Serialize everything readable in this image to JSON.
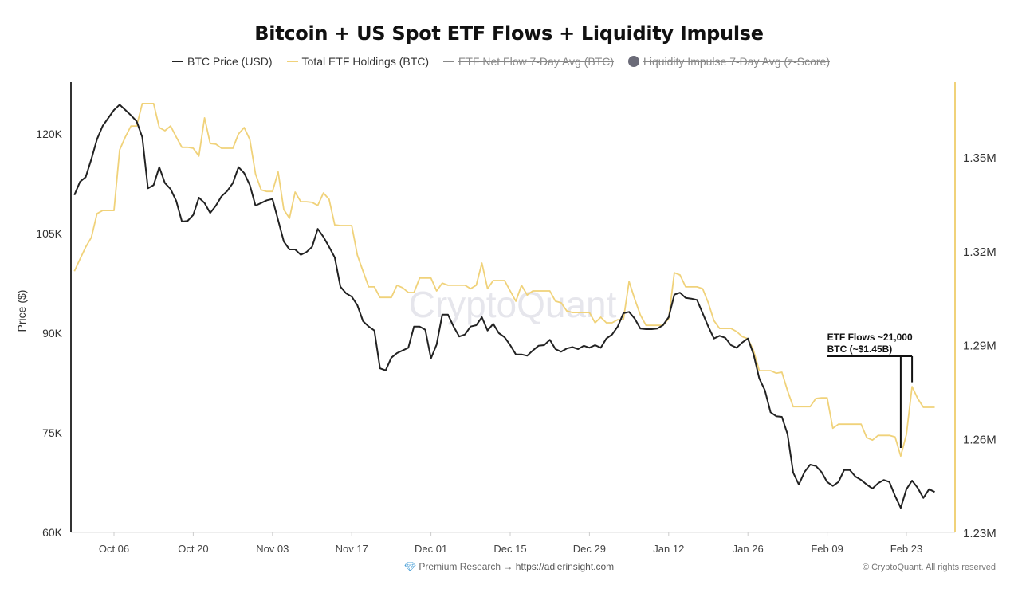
{
  "chart_data": {
    "type": "line",
    "title": "Bitcoin + US Spot ETF Flows + Liquidity Impulse",
    "ylabel": "Price ($)",
    "ylabel_right": "",
    "xlabel": "",
    "ylim": [
      60000,
      127000
    ],
    "ylim_right": [
      1230000,
      1372000
    ],
    "yticks": [
      {
        "v": 60000,
        "label": "60K"
      },
      {
        "v": 75000,
        "label": "75K"
      },
      {
        "v": 90000,
        "label": "90K"
      },
      {
        "v": 105000,
        "label": "105K"
      },
      {
        "v": 120000,
        "label": "120K"
      }
    ],
    "yticks_right": [
      {
        "v": 1230000,
        "label": "1.23M"
      },
      {
        "v": 1260000,
        "label": "1.26M"
      },
      {
        "v": 1290000,
        "label": "1.29M"
      },
      {
        "v": 1320000,
        "label": "1.32M"
      },
      {
        "v": 1350000,
        "label": "1.35M"
      }
    ],
    "xticks": [
      "Oct 06",
      "Oct 20",
      "Nov 03",
      "Nov 17",
      "Dec 01",
      "Dec 15",
      "Dec 29",
      "Jan 12",
      "Jan 26",
      "Feb 09",
      "Feb 23"
    ],
    "grid": false,
    "legend_position": "top",
    "legend": [
      {
        "label": "BTC Price (USD)",
        "color": "#222222",
        "marker": "line",
        "hidden": false
      },
      {
        "label": "Total ETF Holdings (BTC)",
        "color": "#f0d27a",
        "marker": "line",
        "hidden": false
      },
      {
        "label": "ETF Net Flow 7-Day Avg (BTC)",
        "color": "#888888",
        "marker": "line",
        "hidden": true
      },
      {
        "label": "Liquidity Impulse 7-Day Avg (z-Score)",
        "color": "#6b6b78",
        "marker": "dot",
        "hidden": true
      }
    ],
    "x": [
      "Sep 29",
      "Sep 30",
      "Oct 01",
      "Oct 02",
      "Oct 03",
      "Oct 04",
      "Oct 05",
      "Oct 06",
      "Oct 07",
      "Oct 08",
      "Oct 09",
      "Oct 10",
      "Oct 11",
      "Oct 12",
      "Oct 13",
      "Oct 14",
      "Oct 15",
      "Oct 16",
      "Oct 17",
      "Oct 18",
      "Oct 19",
      "Oct 20",
      "Oct 21",
      "Oct 22",
      "Oct 23",
      "Oct 24",
      "Oct 25",
      "Oct 26",
      "Oct 27",
      "Oct 28",
      "Oct 29",
      "Oct 30",
      "Oct 31",
      "Nov 01",
      "Nov 02",
      "Nov 03",
      "Nov 04",
      "Nov 05",
      "Nov 06",
      "Nov 07",
      "Nov 08",
      "Nov 09",
      "Nov 10",
      "Nov 11",
      "Nov 12",
      "Nov 13",
      "Nov 14",
      "Nov 15",
      "Nov 16",
      "Nov 17",
      "Nov 18",
      "Nov 19",
      "Nov 20",
      "Nov 21",
      "Nov 22",
      "Nov 23",
      "Nov 24",
      "Nov 25",
      "Nov 26",
      "Nov 27",
      "Nov 28",
      "Nov 29",
      "Nov 30",
      "Dec 01",
      "Dec 02",
      "Dec 03",
      "Dec 04",
      "Dec 05",
      "Dec 06",
      "Dec 07",
      "Dec 08",
      "Dec 09",
      "Dec 10",
      "Dec 11",
      "Dec 12",
      "Dec 13",
      "Dec 14",
      "Dec 15",
      "Dec 16",
      "Dec 17",
      "Dec 18",
      "Dec 19",
      "Dec 20",
      "Dec 21",
      "Dec 22",
      "Dec 23",
      "Dec 24",
      "Dec 25",
      "Dec 26",
      "Dec 27",
      "Dec 28",
      "Dec 29",
      "Dec 30",
      "Dec 31",
      "Jan 01",
      "Jan 02",
      "Jan 03",
      "Jan 04",
      "Jan 05",
      "Jan 06",
      "Jan 07",
      "Jan 08",
      "Jan 09",
      "Jan 10",
      "Jan 11",
      "Jan 12",
      "Jan 13",
      "Jan 14",
      "Jan 15",
      "Jan 16",
      "Jan 17",
      "Jan 18",
      "Jan 19",
      "Jan 20",
      "Jan 21",
      "Jan 22",
      "Jan 23",
      "Jan 24",
      "Jan 25",
      "Jan 26",
      "Jan 27",
      "Jan 28",
      "Jan 29",
      "Jan 30",
      "Jan 31",
      "Feb 01",
      "Feb 02",
      "Feb 03",
      "Feb 04",
      "Feb 05",
      "Feb 06",
      "Feb 07",
      "Feb 08",
      "Feb 09",
      "Feb 10",
      "Feb 11",
      "Feb 12",
      "Feb 13",
      "Feb 14",
      "Feb 15",
      "Feb 16",
      "Feb 17",
      "Feb 18",
      "Feb 19",
      "Feb 20",
      "Feb 21",
      "Feb 22",
      "Feb 23",
      "Feb 24",
      "Feb 25",
      "Feb 26",
      "Feb 27",
      "Feb 28"
    ],
    "series": [
      {
        "name": "BTC Price (USD)",
        "axis": "left",
        "color": "#222222",
        "values": [
          110800,
          112800,
          113500,
          116200,
          119200,
          121200,
          122400,
          123600,
          124400,
          123600,
          122800,
          121900,
          119500,
          111800,
          112300,
          115000,
          112600,
          111700,
          109900,
          106800,
          106900,
          107800,
          110400,
          109600,
          108100,
          109200,
          110600,
          111400,
          112600,
          115000,
          114100,
          112300,
          109200,
          109600,
          110000,
          110200,
          107000,
          103800,
          102600,
          102600,
          101800,
          102200,
          103000,
          105700,
          104500,
          103000,
          101400,
          97000,
          96000,
          95500,
          94200,
          91800,
          91000,
          90400,
          84700,
          84400,
          86300,
          87000,
          87400,
          87800,
          91000,
          91000,
          90500,
          86200,
          88300,
          92800,
          92800,
          91000,
          89500,
          89800,
          91000,
          91200,
          92400,
          90400,
          91400,
          90000,
          89400,
          88200,
          86800,
          86800,
          86600,
          87400,
          88100,
          88200,
          89000,
          87600,
          87200,
          87700,
          87900,
          87600,
          88100,
          87800,
          88200,
          87800,
          89200,
          89800,
          91000,
          93000,
          93200,
          92200,
          90700,
          90600,
          90600,
          90700,
          91200,
          92400,
          95800,
          96100,
          95300,
          95200,
          95000,
          93000,
          91000,
          89200,
          89600,
          89300,
          88200,
          87800,
          88600,
          89200,
          86800,
          83200,
          81400,
          78100,
          77500,
          77400,
          74800,
          69000,
          67200,
          69100,
          70200,
          70000,
          69100,
          67600,
          67000,
          67600,
          69400,
          69400,
          68400,
          67900,
          67200,
          66600,
          67400,
          67900,
          67600,
          65500,
          63700,
          66500,
          67800,
          66700,
          65200,
          66500,
          66100
        ]
      },
      {
        "name": "Total ETF Holdings (BTC)",
        "axis": "right",
        "color": "#f0d27a",
        "values": [
          1313500,
          1317400,
          1321200,
          1324300,
          1331900,
          1332900,
          1332900,
          1332900,
          1352300,
          1356400,
          1359900,
          1359900,
          1367100,
          1367100,
          1367100,
          1359400,
          1358400,
          1359900,
          1356400,
          1353100,
          1353100,
          1352800,
          1350300,
          1362500,
          1354300,
          1354100,
          1352800,
          1352800,
          1352800,
          1357400,
          1359400,
          1355600,
          1344600,
          1339500,
          1339000,
          1339000,
          1345200,
          1333200,
          1330400,
          1338800,
          1335700,
          1335700,
          1335500,
          1334500,
          1338500,
          1336500,
          1328300,
          1328100,
          1328100,
          1328100,
          1318600,
          1313500,
          1308500,
          1308500,
          1305100,
          1305100,
          1305100,
          1309000,
          1308200,
          1306700,
          1306700,
          1311300,
          1311300,
          1311300,
          1307200,
          1309700,
          1309000,
          1309000,
          1309000,
          1309000,
          1307900,
          1309000,
          1316100,
          1307900,
          1310500,
          1310500,
          1310500,
          1307200,
          1303900,
          1309000,
          1305900,
          1307200,
          1307200,
          1307200,
          1307200,
          1303900,
          1303400,
          1300800,
          1300300,
          1300300,
          1300300,
          1300300,
          1297000,
          1298800,
          1297000,
          1297000,
          1298000,
          1298000,
          1310200,
          1304600,
          1299500,
          1296200,
          1296200,
          1296200,
          1296200,
          1298300,
          1313000,
          1312300,
          1308500,
          1308500,
          1308500,
          1307900,
          1303400,
          1297700,
          1295200,
          1295200,
          1295200,
          1294200,
          1292600,
          1291900,
          1288100,
          1281700,
          1281700,
          1281700,
          1280900,
          1281200,
          1275300,
          1270200,
          1270200,
          1270200,
          1270200,
          1272800,
          1273000,
          1273000,
          1263300,
          1264600,
          1264600,
          1264600,
          1264600,
          1264600,
          1260300,
          1259500,
          1261000,
          1261000,
          1261000,
          1260500,
          1254400,
          1261300,
          1276600,
          1272800,
          1270000,
          1270000,
          1270000
        ]
      }
    ],
    "annotations": [
      {
        "text_line1": "ETF Flows ~21,000",
        "text_line2": "BTC (~$1.45B)",
        "from_x": "Feb 09",
        "targets": [
          {
            "x": "Feb 22",
            "y": 1257000
          },
          {
            "x": "Feb 24",
            "y": 1278000
          }
        ]
      }
    ]
  },
  "watermark": "CryptoQuant",
  "footer": {
    "icon": "diamond-icon",
    "promo_text": "Premium Research →",
    "link": "https://adlerinsight.com",
    "copyright": "© CryptoQuant. All rights reserved"
  }
}
